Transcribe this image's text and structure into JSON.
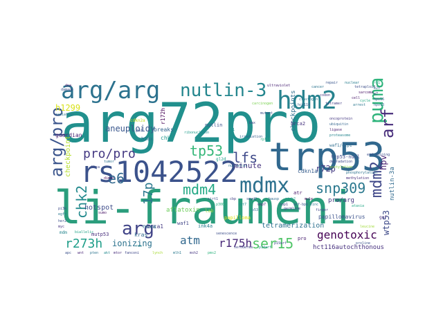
{
  "words": [
    {
      "text": "arg72pro",
      "color": "#21908d",
      "rotated": false
    },
    {
      "text": "li-fraumeni",
      "color": "#2a9d7c",
      "rotated": false
    },
    {
      "text": "rs1042522",
      "color": "#3b528b",
      "rotated": false
    },
    {
      "text": "trp53",
      "color": "#31688e",
      "rotated": false
    },
    {
      "text": "arg/arg",
      "color": "#2c728e",
      "rotated": false
    },
    {
      "text": "hdm2",
      "color": "#26828e",
      "rotated": false
    },
    {
      "text": "nutlin-3",
      "color": "#24868e",
      "rotated": false
    },
    {
      "text": "mdmx",
      "color": "#2d718e",
      "rotated": false
    },
    {
      "text": "puma",
      "color": "#2fb47c",
      "rotated": true
    },
    {
      "text": "arf",
      "color": "#472c7a",
      "rotated": true
    },
    {
      "text": "arg/pro",
      "color": "#3a548c",
      "rotated": true
    },
    {
      "text": "arg",
      "color": "#404387",
      "rotated": false
    },
    {
      "text": "tp53",
      "color": "#35b779",
      "rotated": false
    },
    {
      "text": "pro/pro",
      "color": "#443983",
      "rotated": false
    },
    {
      "text": "lfs",
      "color": "#3e4989",
      "rotated": false
    },
    {
      "text": "snp309",
      "color": "#2a788e",
      "rotated": false
    },
    {
      "text": "mdm4",
      "color": "#22a884",
      "rotated": false
    },
    {
      "text": "mdm2",
      "color": "#3f4788",
      "rotated": true
    },
    {
      "text": "chk2",
      "color": "#238a8d",
      "rotated": true
    },
    {
      "text": "e6",
      "color": "#31688e",
      "rotated": false
    },
    {
      "text": "17p",
      "color": "#2a788e",
      "rotated": true
    },
    {
      "text": "ser15",
      "color": "#52c569",
      "rotated": false
    },
    {
      "text": "genotoxic",
      "color": "#440154",
      "rotated": false
    },
    {
      "text": "r273h",
      "color": "#1f9e89",
      "rotated": false
    },
    {
      "text": "r175h",
      "color": "#482878",
      "rotated": false
    },
    {
      "text": "atm",
      "color": "#31688e",
      "rotated": false
    },
    {
      "text": "ionizing",
      "color": "#2c728e",
      "rotated": false
    },
    {
      "text": "hpv",
      "color": "#481d6f",
      "rotated": true
    },
    {
      "text": "r72p",
      "color": "#443a83",
      "rotated": false
    },
    {
      "text": "aneuploidy",
      "color": "#39568c",
      "rotated": false
    },
    {
      "text": "h1299",
      "color": "#d8e219",
      "rotated": false
    },
    {
      "text": "minute",
      "color": "#46337e",
      "rotated": false
    },
    {
      "text": "wtp53",
      "color": "#3e4a89",
      "rotated": true
    },
    {
      "text": "tetramerization",
      "color": "#2d708e",
      "rotated": false
    },
    {
      "text": "aflatoxin",
      "color": "#6ccd5a",
      "rotated": false
    },
    {
      "text": "hotspot",
      "color": "#3e4c8a",
      "rotated": false
    },
    {
      "text": "checkpoint",
      "color": "#b5de2b",
      "rotated": true
    },
    {
      "text": "brca1",
      "color": "#443a83",
      "rotated": false
    },
    {
      "text": "hct116autochthonous",
      "color": "#46307e",
      "rotated": false
    },
    {
      "text": "nutlin-3a",
      "color": "#306a8e",
      "rotated": true
    },
    {
      "text": "papillomavirus",
      "color": "#3b518b",
      "rotated": false
    },
    {
      "text": "pro/arg",
      "color": "#453781",
      "rotated": false
    },
    {
      "text": "checkpoints",
      "color": "#2e6e8e",
      "rotated": true
    },
    {
      "text": "cdkn1a",
      "color": "#365d8d",
      "rotated": false
    },
    {
      "text": "breaks",
      "color": "#33638d",
      "rotated": false
    },
    {
      "text": "r172h",
      "color": "#440154",
      "rotated": true
    },
    {
      "text": "noxa",
      "color": "#2e6f8e",
      "rotated": false
    },
    {
      "text": "waf1",
      "color": "#414487",
      "rotated": false
    },
    {
      "text": "kras",
      "color": "#31688e",
      "rotated": false
    },
    {
      "text": "chk1",
      "color": "#1f968b",
      "rotated": false
    },
    {
      "text": "h2ax",
      "color": "#2d708e",
      "rotated": false
    },
    {
      "text": "ink4a",
      "color": "#287d8e",
      "rotated": false
    },
    {
      "text": "nutlin",
      "color": "#3b518b",
      "rotated": false
    },
    {
      "text": "brca2",
      "color": "#46327e",
      "rotated": false
    },
    {
      "text": "guardian",
      "color": "#482475",
      "rotated": false
    },
    {
      "text": "trp53-null",
      "color": "#3f4889",
      "rotated": false
    },
    {
      "text": "waf1/cip1",
      "color": "#2e6d8e",
      "rotated": false
    },
    {
      "text": "papilloma",
      "color": "#dde318",
      "rotated": false
    },
    {
      "text": "gl2d",
      "color": "#1fa088",
      "rotated": false
    },
    {
      "text": "mutp53",
      "color": "#472d7b",
      "rotated": false
    },
    {
      "text": "lab",
      "color": "#95d840",
      "rotated": false
    },
    {
      "text": "atr",
      "color": "#48186a",
      "rotated": false
    },
    {
      "text": "cdkn2a",
      "color": "#c2df23",
      "rotated": false
    },
    {
      "text": "p16",
      "color": "#3b528b",
      "rotated": false
    },
    {
      "text": "pro",
      "color": "#481f70",
      "rotated": false
    },
    {
      "text": "mdm",
      "color": "#25858e",
      "rotated": false
    },
    {
      "text": "gof",
      "color": "#472f7d",
      "rotated": false
    },
    {
      "text": "carcinogen",
      "color": "#7ad151",
      "rotated": false
    },
    {
      "text": "mutant",
      "color": "#3c4f8a",
      "rotated": false
    },
    {
      "text": "radiation",
      "color": "#2b758e",
      "rotated": false
    },
    {
      "text": "ataxia",
      "color": "#22a785",
      "rotated": false
    },
    {
      "text": "irradiation",
      "color": "#34618d",
      "rotated": false
    },
    {
      "text": "ultraviolet",
      "color": "#482173",
      "rotated": false
    },
    {
      "text": "senescence",
      "color": "#3d4e8a",
      "rotated": false
    },
    {
      "text": "p21",
      "color": "#20928c",
      "rotated": false
    },
    {
      "text": "bax",
      "color": "#404588",
      "rotated": false
    },
    {
      "text": "proline",
      "color": "#3a538b",
      "rotated": false
    },
    {
      "text": "leucine",
      "color": "#a0da39",
      "rotated": false
    },
    {
      "text": "codon",
      "color": "#453882",
      "rotated": false
    },
    {
      "text": "exon",
      "color": "#23898e",
      "rotated": false
    },
    {
      "text": "ribonucl",
      "color": "#1e9b8a",
      "rotated": false
    },
    {
      "text": "end-joining",
      "color": "#3d4d8a",
      "rotated": false
    },
    {
      "text": "rpl11",
      "color": "#26ad81",
      "rotated": false
    },
    {
      "text": "tetraploid",
      "color": "#3c4f8a",
      "rotated": false
    },
    {
      "text": "clastogen",
      "color": "#287c8e",
      "rotated": false
    },
    {
      "text": "nucleolar",
      "color": "#2e6f8e",
      "rotated": false
    },
    {
      "text": "sarcoma",
      "color": "#471164",
      "rotated": false
    },
    {
      "text": "biallelic",
      "color": "#1fa287",
      "rotated": false
    },
    {
      "text": "germline",
      "color": "#424186",
      "rotated": false
    },
    {
      "text": "hct116",
      "color": "#34618d",
      "rotated": false
    },
    {
      "text": "brca",
      "color": "#3f4788",
      "rotated": false
    },
    {
      "text": "tumor",
      "color": "#2d718e",
      "rotated": false
    },
    {
      "text": "p53",
      "color": "#2c728e",
      "rotated": false
    },
    {
      "text": "sumo",
      "color": "#481467",
      "rotated": false
    },
    {
      "text": "ras",
      "color": "#23888e",
      "rotated": false
    },
    {
      "text": "p19arf",
      "color": "#3e4a89",
      "rotated": false
    },
    {
      "text": "p14arf",
      "color": "#24878e",
      "rotated": false
    },
    {
      "text": "xeroderma",
      "color": "#404688",
      "rotated": false
    },
    {
      "text": "nuclear",
      "color": "#287d8e",
      "rotated": false
    },
    {
      "text": "dna",
      "color": "#481b6d",
      "rotated": false
    },
    {
      "text": "damage",
      "color": "#3b518b",
      "rotated": false
    },
    {
      "text": "repair",
      "color": "#39558c",
      "rotated": false
    },
    {
      "text": "cancer",
      "color": "#2b748e",
      "rotated": false
    },
    {
      "text": "cell",
      "color": "#481769",
      "rotated": false
    },
    {
      "text": "cycle",
      "color": "#22a884",
      "rotated": false
    },
    {
      "text": "arrest",
      "color": "#2a768e",
      "rotated": false
    },
    {
      "text": "tetramer",
      "color": "#433e85",
      "rotated": false
    },
    {
      "text": "dimer",
      "color": "#450559",
      "rotated": false
    },
    {
      "text": "fanconi",
      "color": "#3f4788",
      "rotated": false
    },
    {
      "text": "lynch",
      "color": "#a8db34",
      "rotated": false
    },
    {
      "text": "mlh1",
      "color": "#2a788e",
      "rotated": false
    },
    {
      "text": "msh2",
      "color": "#453581",
      "rotated": false
    },
    {
      "text": "pms2",
      "color": "#2db27d",
      "rotated": false
    },
    {
      "text": "apc",
      "color": "#3b518b",
      "rotated": false
    },
    {
      "text": "wnt",
      "color": "#482677",
      "rotated": false
    },
    {
      "text": "pten",
      "color": "#2c738e",
      "rotated": false
    },
    {
      "text": "akt",
      "color": "#23898e",
      "rotated": false
    },
    {
      "text": "mtor",
      "color": "#472a7a",
      "rotated": false
    },
    {
      "text": "pi3k",
      "color": "#3e4989",
      "rotated": false
    },
    {
      "text": "egfr",
      "color": "#2a788e",
      "rotated": false
    },
    {
      "text": "her2",
      "color": "#3c508b",
      "rotated": false
    },
    {
      "text": "myc",
      "color": "#46337f",
      "rotated": false
    },
    {
      "text": "rb1",
      "color": "#20a386",
      "rotated": false
    },
    {
      "text": "e2f",
      "color": "#31688e",
      "rotated": false
    },
    {
      "text": "e7",
      "color": "#424086",
      "rotated": false
    },
    {
      "text": "hpv16",
      "color": "#39568c",
      "rotated": false
    },
    {
      "text": "hpv18",
      "color": "#2e6e8e",
      "rotated": false
    },
    {
      "text": "oncoprotein",
      "color": "#453882",
      "rotated": false
    },
    {
      "text": "ubiquitin",
      "color": "#32658e",
      "rotated": false
    },
    {
      "text": "ligase",
      "color": "#481d6f",
      "rotated": false
    },
    {
      "text": "proteasome",
      "color": "#25858e",
      "rotated": false
    },
    {
      "text": "degradation",
      "color": "#3e4989",
      "rotated": false
    },
    {
      "text": "acetylation",
      "color": "#8bd646",
      "rotated": false
    },
    {
      "text": "phosphorylation",
      "color": "#2c718e",
      "rotated": false
    },
    {
      "text": "methylation",
      "color": "#472e7c",
      "rotated": false
    },
    {
      "text": "sirt1",
      "color": "#3d4e8a",
      "rotated": false
    },
    {
      "text": "p300",
      "color": "#28ae80",
      "rotated": false
    },
    {
      "text": "cbp",
      "color": "#423f85",
      "rotated": false
    },
    {
      "text": "set7",
      "color": "#21918c",
      "rotated": false
    },
    {
      "text": "smyd2",
      "color": "#3b528b",
      "rotated": false
    },
    {
      "text": "usp7",
      "color": "#482576",
      "rotated": false
    },
    {
      "text": "hausp",
      "color": "#2f6b8e",
      "rotated": false
    },
    {
      "text": "cop1",
      "color": "#424086",
      "rotated": false
    },
    {
      "text": "pirh2",
      "color": "#1f9f88",
      "rotated": false
    },
    {
      "text": "arf-bp1",
      "color": "#3a548c",
      "rotated": false
    },
    {
      "text": "mule",
      "color": "#450457",
      "rotated": false
    },
    {
      "text": "zinc",
      "color": "#2b748e",
      "rotated": false
    },
    {
      "text": "finger",
      "color": "#3f4889",
      "rotated": false
    }
  ]
}
